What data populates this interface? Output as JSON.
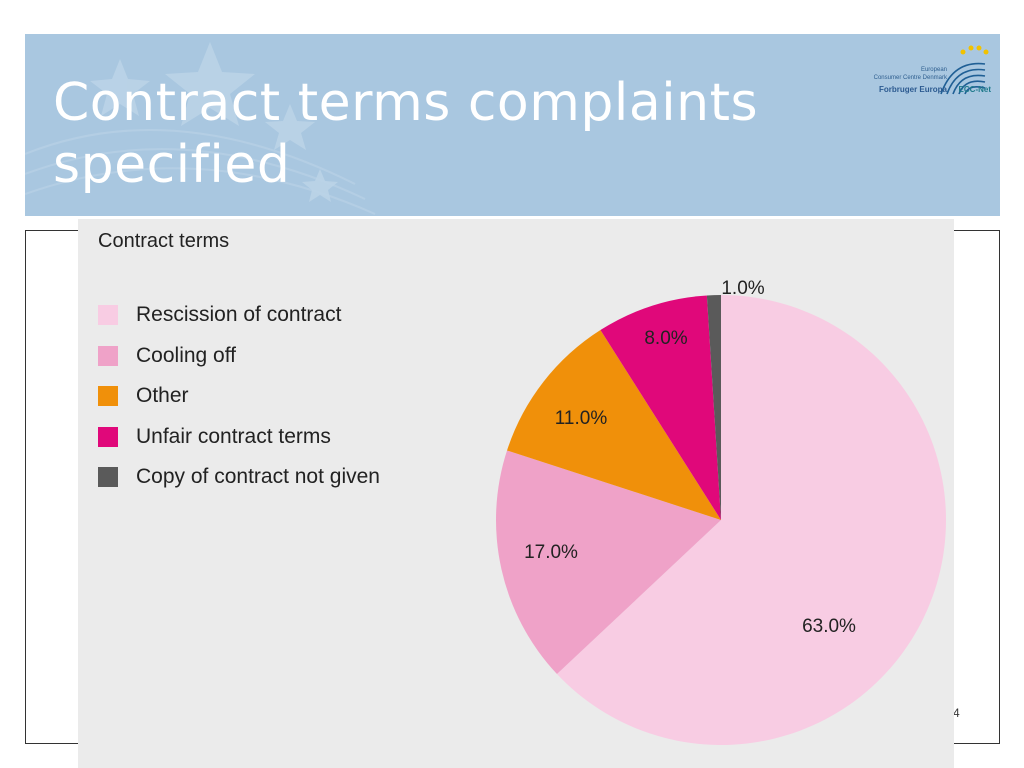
{
  "slide": {
    "title": "Contract terms complaints specified",
    "page_number": "4"
  },
  "logo": {
    "line1": "European",
    "line2": "Consumer Centre Denmark",
    "line3": "Forbruger Europa",
    "net": "ECC-Net",
    "icon": "ecc-net-arc-stars-logo"
  },
  "chart_data": {
    "type": "pie",
    "title": "Contract terms",
    "legend_position": "top-left",
    "start_angle_deg": 0,
    "direction": "clockwise",
    "slices": [
      {
        "label": "Rescission of contract",
        "value": 63.0,
        "display": "63.0%",
        "color": "#f8cce3"
      },
      {
        "label": "Cooling off",
        "value": 17.0,
        "display": "17.0%",
        "color": "#efa2c8"
      },
      {
        "label": "Other",
        "value": 11.0,
        "display": "11.0%",
        "color": "#f0900a"
      },
      {
        "label": "Unfair contract terms",
        "value": 8.0,
        "display": "8.0%",
        "color": "#e0087a"
      },
      {
        "label": "Copy of contract not given",
        "value": 1.0,
        "display": "1.0%",
        "color": "#5a5a5a"
      }
    ]
  }
}
